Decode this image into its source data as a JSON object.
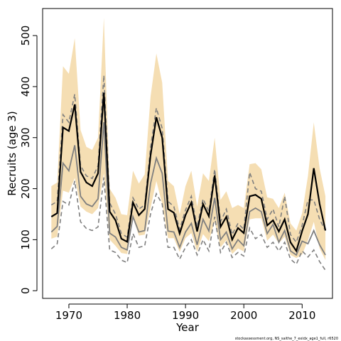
{
  "chart_data": {
    "type": "line",
    "xlabel": "Year",
    "ylabel": "Recruits (age 3)",
    "footnote": "stockassessment.org, NS_saithe_7_exidx_age1_full, r6520",
    "xlim": [
      1965.5,
      2015.2
    ],
    "ylim": [
      -15,
      553
    ],
    "xticks": [
      1970,
      1980,
      1990,
      2000,
      2010
    ],
    "yticks": [
      0,
      100,
      200,
      300,
      400,
      500
    ],
    "colors": {
      "band": "#f5deb3",
      "estimate": "#000000",
      "other": "#7f7f7f"
    },
    "x": [
      1967,
      1968,
      1969,
      1970,
      1971,
      1972,
      1973,
      1974,
      1975,
      1976,
      1977,
      1978,
      1979,
      1980,
      1981,
      1982,
      1983,
      1984,
      1985,
      1986,
      1987,
      1988,
      1989,
      1990,
      1991,
      1992,
      1993,
      1994,
      1995,
      1996,
      1997,
      1998,
      1999,
      2000,
      2001,
      2002,
      2003,
      2004,
      2005,
      2006,
      2007,
      2008,
      2009,
      2010,
      2011,
      2012,
      2013,
      2014
    ],
    "series": [
      {
        "role": "band-upper",
        "values": [
          205,
          212,
          440,
          425,
          495,
          315,
          282,
          276,
          300,
          535,
          200,
          182,
          150,
          148,
          235,
          210,
          228,
          380,
          465,
          408,
          215,
          205,
          150,
          205,
          235,
          165,
          230,
          215,
          300,
          178,
          195,
          162,
          168,
          162,
          248,
          250,
          238,
          183,
          180,
          162,
          192,
          132,
          118,
          152,
          225,
          330,
          240,
          185
        ]
      },
      {
        "role": "band-lower",
        "values": [
          102,
          106,
          196,
          192,
          221,
          165,
          155,
          150,
          162,
          230,
          100,
          88,
          74,
          72,
          142,
          108,
          110,
          162,
          215,
          170,
          103,
          103,
          76,
          103,
          113,
          76,
          111,
          97,
          135,
          85,
          99,
          72,
          83,
          77,
          140,
          142,
          142,
          98,
          110,
          93,
          106,
          70,
          64,
          71,
          99,
          135,
          83,
          60
        ]
      },
      {
        "role": "estimate",
        "values": [
          145,
          152,
          320,
          313,
          365,
          233,
          212,
          205,
          230,
          388,
          155,
          138,
          102,
          96,
          173,
          148,
          160,
          265,
          340,
          300,
          160,
          153,
          112,
          148,
          173,
          116,
          170,
          146,
          226,
          125,
          145,
          100,
          123,
          113,
          185,
          188,
          180,
          128,
          138,
          116,
          140,
          95,
          78,
          117,
          150,
          240,
          170,
          118
        ]
      },
      {
        "role": "other-solid",
        "values": [
          115,
          126,
          250,
          235,
          285,
          185,
          170,
          165,
          180,
          330,
          113,
          105,
          85,
          80,
          145,
          115,
          118,
          210,
          260,
          230,
          117,
          115,
          85,
          115,
          132,
          90,
          140,
          117,
          182,
          100,
          115,
          82,
          100,
          88,
          155,
          162,
          155,
          112,
          130,
          95,
          118,
          78,
          70,
          97,
          92,
          118,
          90,
          70
        ]
      },
      {
        "role": "other-upper",
        "values": [
          168,
          175,
          345,
          330,
          385,
          245,
          225,
          220,
          245,
          422,
          172,
          150,
          112,
          105,
          182,
          160,
          168,
          280,
          358,
          318,
          175,
          165,
          120,
          158,
          185,
          125,
          180,
          155,
          238,
          135,
          160,
          110,
          132,
          120,
          232,
          200,
          195,
          140,
          160,
          125,
          185,
          110,
          95,
          128,
          178,
          178,
          140,
          118
        ]
      },
      {
        "role": "other-lower",
        "values": [
          82,
          92,
          175,
          168,
          215,
          135,
          122,
          118,
          125,
          222,
          80,
          75,
          60,
          55,
          112,
          85,
          88,
          150,
          190,
          170,
          85,
          85,
          62,
          85,
          100,
          70,
          100,
          78,
          145,
          75,
          95,
          65,
          75,
          68,
          123,
          102,
          110,
          85,
          95,
          78,
          95,
          62,
          52,
          78,
          66,
          80,
          57,
          40
        ]
      }
    ]
  }
}
